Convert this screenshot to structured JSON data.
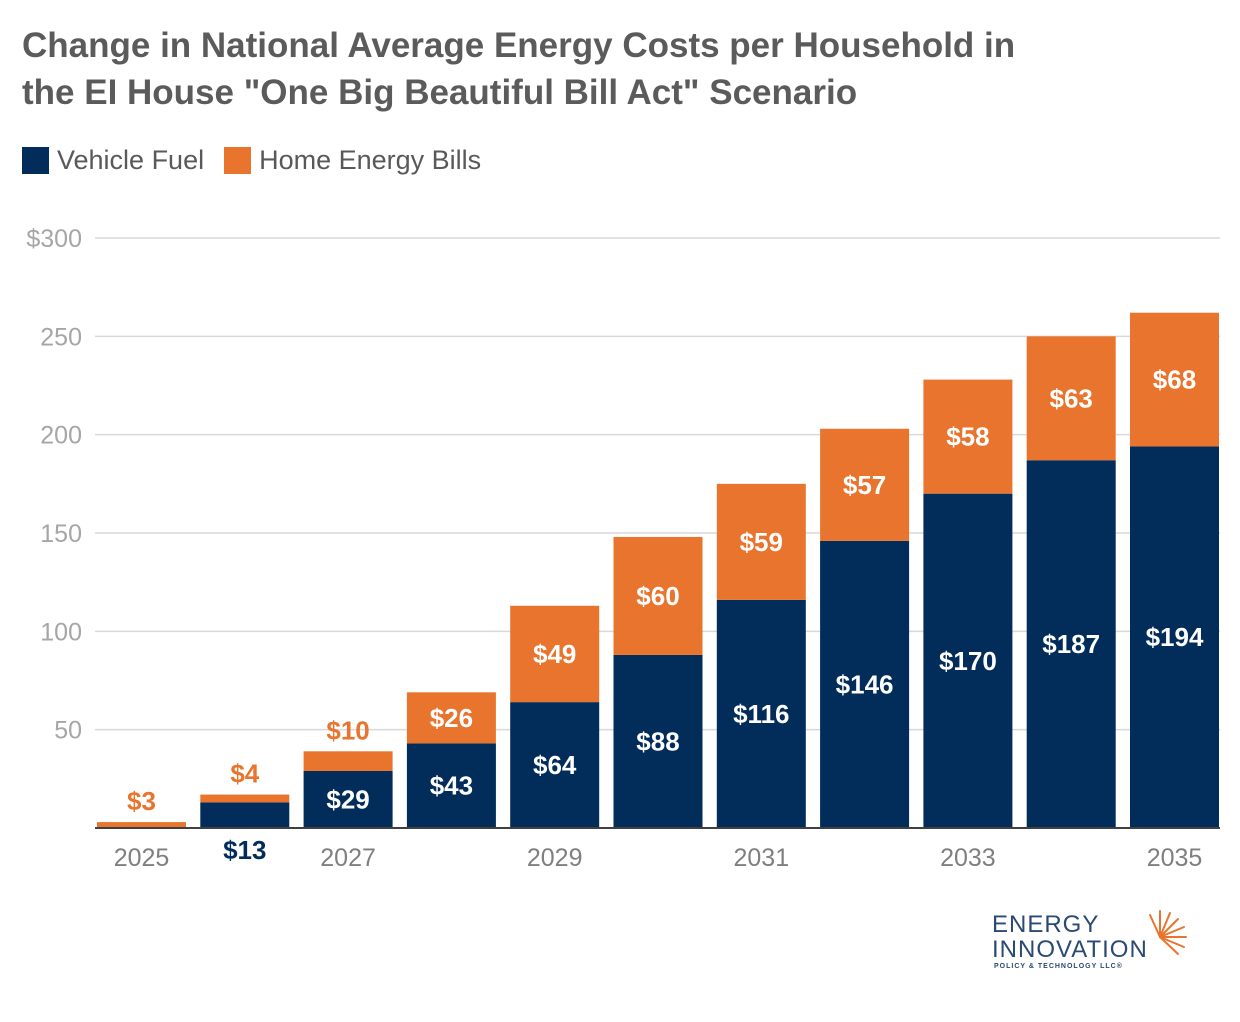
{
  "title": {
    "line1": "Change in National Average Energy Costs per Household in",
    "line2": "the EI House \"One Big Beautiful Bill Act\" Scenario"
  },
  "colors": {
    "vehicle_fuel": "#022c5a",
    "home_energy_bills": "#e8742d",
    "grid": "#d9d9d9",
    "axis": "#404040",
    "tick_text": "#a6a6a6",
    "year_text": "#7f7f7f"
  },
  "chart_data": {
    "type": "bar",
    "stacked": true,
    "categories": [
      "2025",
      "2026",
      "2027",
      "2028",
      "2029",
      "2030",
      "2031",
      "2032",
      "2033",
      "2034",
      "2035"
    ],
    "x_tick_labels": [
      "2025",
      "",
      "2027",
      "",
      "2029",
      "",
      "2031",
      "",
      "2033",
      "",
      "2035"
    ],
    "series": [
      {
        "name": "Vehicle Fuel",
        "values": [
          0,
          13,
          29,
          43,
          64,
          88,
          116,
          146,
          170,
          187,
          194
        ],
        "labels": [
          "",
          "$13",
          "$29",
          "$43",
          "$64",
          "$88",
          "$116",
          "$146",
          "$170",
          "$187",
          "$194"
        ]
      },
      {
        "name": "Home Energy Bills",
        "values": [
          3,
          4,
          10,
          26,
          49,
          60,
          59,
          57,
          58,
          63,
          68
        ],
        "labels": [
          "$3",
          "$4",
          "$10",
          "$26",
          "$49",
          "$60",
          "$59",
          "$57",
          "$58",
          "$63",
          "$68"
        ]
      }
    ],
    "ylim": [
      0,
      300
    ],
    "y_ticks": [
      50,
      100,
      150,
      200,
      250,
      300
    ],
    "y_tick_labels": [
      "50",
      "100",
      "150",
      "200",
      "250",
      "$300"
    ],
    "grid": true,
    "legend": "top-left"
  },
  "logo": {
    "line1": "ENERGY",
    "line2": "INNOVATION",
    "line3": "POLICY & TECHNOLOGY LLC®"
  }
}
